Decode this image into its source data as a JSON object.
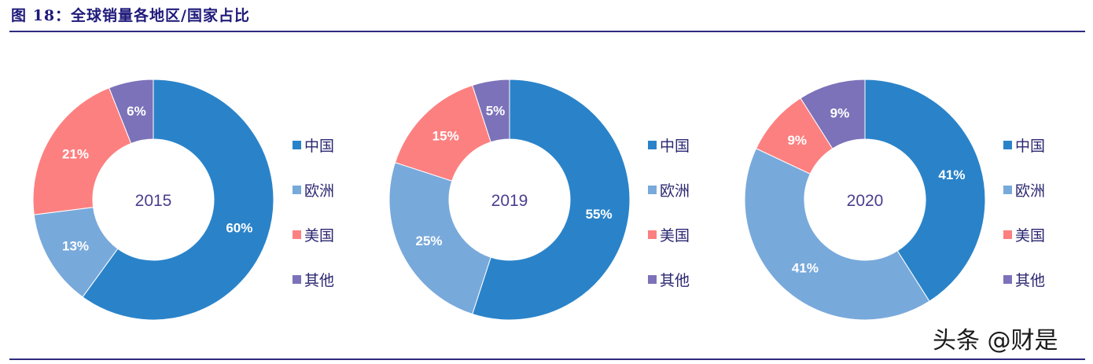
{
  "title": "图 18：全球销量各地区/国家占比",
  "watermark": "头条 @财是",
  "colors": {
    "中国": "#2a83c9",
    "欧洲": "#78a9db",
    "美国": "#fd8080",
    "其他": "#7c72b9",
    "title": "#1f1a7a",
    "rule": "#2e2a7e",
    "center_text": "#4a3f8f"
  },
  "legend": [
    "中国",
    "欧洲",
    "美国",
    "其他"
  ],
  "chart_data": [
    {
      "type": "pie",
      "variant": "donut",
      "title": "2015",
      "categories": [
        "中国",
        "欧洲",
        "美国",
        "其他"
      ],
      "values": [
        60,
        13,
        21,
        6
      ],
      "labels": [
        "60%",
        "13%",
        "21%",
        "6%"
      ],
      "unit": "%",
      "legend_position": "right"
    },
    {
      "type": "pie",
      "variant": "donut",
      "title": "2019",
      "categories": [
        "中国",
        "欧洲",
        "美国",
        "其他"
      ],
      "values": [
        55,
        25,
        15,
        5
      ],
      "labels": [
        "55%",
        "25%",
        "15%",
        "5%"
      ],
      "unit": "%",
      "legend_position": "right"
    },
    {
      "type": "pie",
      "variant": "donut",
      "title": "2020",
      "categories": [
        "中国",
        "欧洲",
        "美国",
        "其他"
      ],
      "values": [
        41,
        41,
        9,
        9
      ],
      "labels": [
        "41%",
        "41%",
        "9%",
        "9%"
      ],
      "unit": "%",
      "legend_position": "right"
    }
  ]
}
